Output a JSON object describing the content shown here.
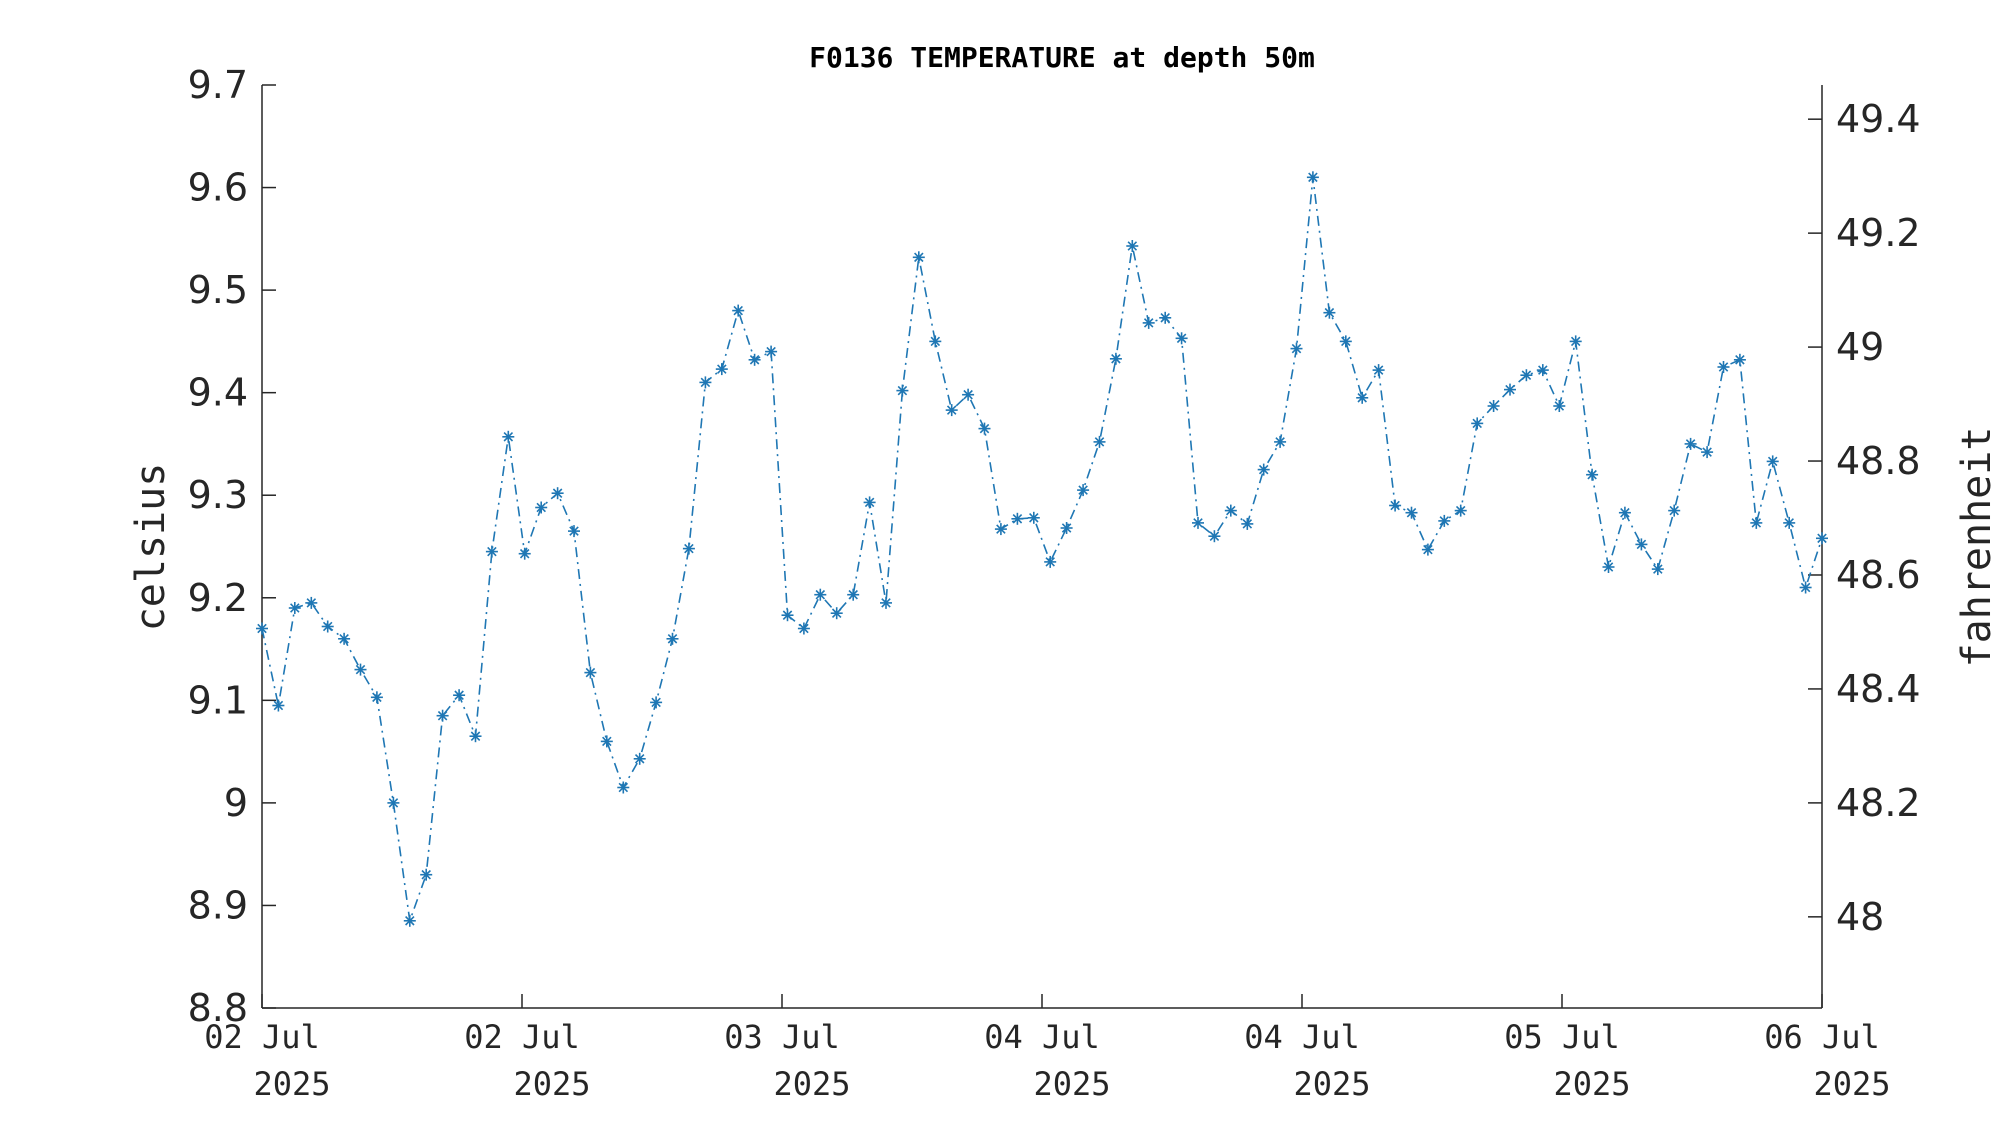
{
  "chart_data": {
    "type": "line",
    "title": "F0136 TEMPERATURE at depth 50m",
    "ylabel": "celsius",
    "y2label": "fahrenheit",
    "xlabel": "",
    "ylim": [
      8.8,
      9.7
    ],
    "yticks": [
      "8.8",
      "8.9",
      "9",
      "9.1",
      "9.2",
      "9.3",
      "9.4",
      "9.5",
      "9.6",
      "9.7"
    ],
    "y2ticks": [
      "48",
      "48.2",
      "48.4",
      "48.6",
      "48.8",
      "49",
      "49.2",
      "49.4"
    ],
    "y2tick_values": [
      48,
      48.2,
      48.4,
      48.6,
      48.8,
      49,
      49.2,
      49.4
    ],
    "xticks": [
      {
        "date": "02 Jul",
        "year": "2025"
      },
      {
        "date": "02 Jul",
        "year": "2025"
      },
      {
        "date": "03 Jul",
        "year": "2025"
      },
      {
        "date": "04 Jul",
        "year": "2025"
      },
      {
        "date": "04 Jul",
        "year": "2025"
      },
      {
        "date": "05 Jul",
        "year": "2025"
      },
      {
        "date": "06 Jul",
        "year": "2025"
      }
    ],
    "grid": false,
    "line_color": "#1f77b4",
    "series": [
      {
        "values": [
          9.17,
          9.095,
          9.19,
          9.195,
          9.172,
          9.16,
          9.13,
          9.103,
          9.0,
          8.885,
          8.93,
          9.085,
          9.105,
          9.065,
          9.245,
          9.357,
          9.243,
          9.288,
          9.302,
          9.265,
          9.127,
          9.06,
          9.015,
          9.043,
          9.098,
          9.16,
          9.248,
          9.41,
          9.423,
          9.48,
          9.432,
          9.44,
          9.183,
          9.17,
          9.203,
          9.185,
          9.203,
          9.293,
          9.195,
          9.402,
          9.532,
          9.45,
          9.383,
          9.398,
          9.365,
          9.267,
          9.277,
          9.278,
          9.235,
          9.268,
          9.305,
          9.352,
          9.433,
          9.543,
          9.468,
          9.473,
          9.453,
          9.273,
          9.26,
          9.285,
          9.272,
          9.325,
          9.352,
          9.443,
          9.61,
          9.478,
          9.45,
          9.395,
          9.422,
          9.29,
          9.283,
          9.247,
          9.275,
          9.285,
          9.37,
          9.387,
          9.403,
          9.417,
          9.422,
          9.387,
          9.45,
          9.32,
          9.23,
          9.283,
          9.252,
          9.228,
          9.285,
          9.35,
          9.342,
          9.425,
          9.432,
          9.273,
          9.333,
          9.273,
          9.21,
          9.258
        ]
      }
    ]
  }
}
